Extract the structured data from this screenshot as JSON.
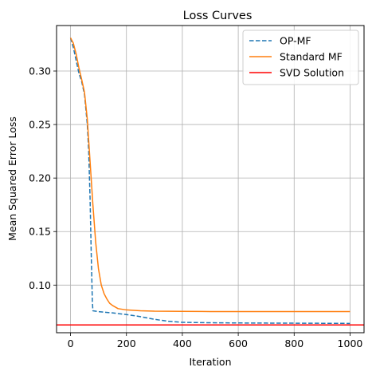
{
  "chart_data": {
    "type": "line",
    "title": "Loss Curves",
    "xlabel": "Iteration",
    "ylabel": "Mean Squared Error Loss",
    "xlim": [
      -50,
      1050
    ],
    "ylim": [
      0.0555,
      0.3425
    ],
    "xticks": [
      0,
      200,
      400,
      600,
      800,
      1000
    ],
    "yticks": [
      0.1,
      0.15,
      0.2,
      0.25,
      0.3
    ],
    "ytick_labels": [
      "0.10",
      "0.15",
      "0.20",
      "0.25",
      "0.30"
    ],
    "grid": true,
    "legend_position": "top-right",
    "series": [
      {
        "name": "OP-MF",
        "color": "#1f77b4",
        "style": "dashed",
        "x": [
          0,
          10,
          20,
          30,
          40,
          50,
          60,
          65,
          70,
          74,
          78,
          80,
          100,
          150,
          200,
          250,
          300,
          350,
          400,
          500,
          600,
          700,
          800,
          900,
          1000
        ],
        "y": [
          0.331,
          0.322,
          0.31,
          0.298,
          0.29,
          0.278,
          0.25,
          0.225,
          0.18,
          0.13,
          0.085,
          0.076,
          0.0752,
          0.074,
          0.0725,
          0.0705,
          0.068,
          0.0662,
          0.0652,
          0.0648,
          0.0646,
          0.0645,
          0.0644,
          0.0643,
          0.0642
        ]
      },
      {
        "name": "Standard MF",
        "color": "#ff7f0e",
        "style": "solid",
        "x": [
          0,
          10,
          20,
          30,
          40,
          50,
          60,
          70,
          80,
          90,
          100,
          110,
          120,
          130,
          140,
          150,
          170,
          200,
          250,
          300,
          400,
          500,
          600,
          700,
          800,
          900,
          1000
        ],
        "y": [
          0.331,
          0.326,
          0.316,
          0.303,
          0.292,
          0.28,
          0.255,
          0.215,
          0.175,
          0.14,
          0.115,
          0.1,
          0.092,
          0.087,
          0.083,
          0.081,
          0.078,
          0.0768,
          0.076,
          0.0756,
          0.0754,
          0.0753,
          0.0753,
          0.0753,
          0.0753,
          0.0753,
          0.0753
        ]
      },
      {
        "name": "SVD Solution",
        "color": "#ff0000",
        "style": "hline",
        "y": 0.0628
      }
    ]
  }
}
